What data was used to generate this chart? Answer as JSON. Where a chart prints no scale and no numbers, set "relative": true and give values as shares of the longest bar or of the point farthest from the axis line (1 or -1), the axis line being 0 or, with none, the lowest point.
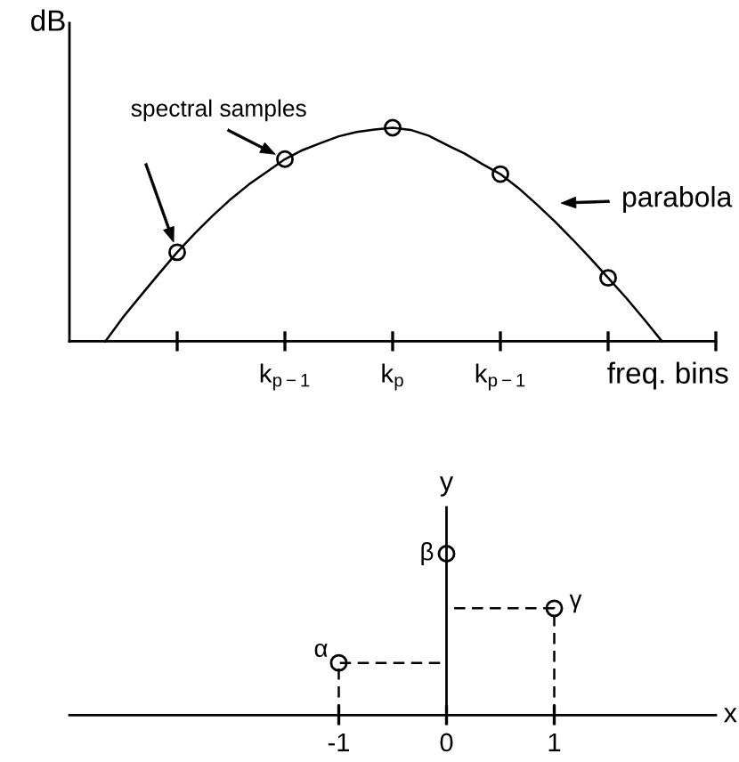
{
  "chart_data": [
    {
      "type": "line",
      "relative": true,
      "ylabel": "dB",
      "xlabel": "freq. bins",
      "categories": [
        null,
        null,
        null,
        null,
        null,
        null,
        null,
        null,
        null,
        null,
        null,
        null,
        "k$_{p−1}$",
        null,
        null,
        null,
        null,
        null,
        "k$_{p}$",
        null,
        null,
        null,
        null,
        null,
        "k$_{p−1}$",
        null,
        null,
        null,
        null,
        null,
        null,
        null,
        null,
        null,
        null,
        null,
        null
      ],
      "series": [
        {
          "color": "#000000",
          "line_style": "solid",
          "marker": "none",
          "values": [
            null,
            null,
            0,
            0.114,
            0.217,
            0.318,
            0.417,
            0.507,
            0.59,
            0.667,
            0.735,
            0.794,
            0.853,
            0.896,
            0.929,
            0.96,
            0.98,
            0.992,
            1,
            0.99,
            0.963,
            0.92,
            0.88,
            0.83,
            0.783,
            0.718,
            0.643,
            0.564,
            0.479,
            0.39,
            0.297,
            0.204,
            0.104,
            0,
            null,
            null,
            null
          ]
        },
        {
          "type": "scatter",
          "color": "#000000",
          "marker": "circle",
          "values": [
            null,
            null,
            null,
            null,
            null,
            null,
            0.417,
            null,
            null,
            null,
            null,
            null,
            0.853,
            null,
            null,
            null,
            null,
            null,
            1,
            null,
            null,
            null,
            null,
            null,
            0.783,
            null,
            null,
            null,
            null,
            null,
            0.297,
            null,
            null,
            null,
            null,
            null,
            null
          ]
        }
      ],
      "annotations": [
        "spectral samples",
        "parabola"
      ]
    },
    {
      "type": "scatter",
      "relative": true,
      "ylabel": "y",
      "xlabel": "x",
      "xlim": [
        -3.5,
        2.5
      ],
      "xticks": [
        -1,
        0,
        1
      ],
      "series": [
        {
          "type": "line",
          "color": "#000000",
          "line_style": "dashed",
          "marker": "none",
          "x": [
            -1,
            -1,
            0
          ],
          "values": [
            0,
            0.324,
            0.324
          ]
        },
        {
          "type": "line",
          "color": "#000000",
          "line_style": "dashed",
          "marker": "none",
          "x": [
            1,
            1,
            0
          ],
          "values": [
            0,
            0.662,
            0.662
          ]
        },
        {
          "color": "#000000",
          "marker": "circle",
          "x": [
            -1,
            0,
            1
          ],
          "values": [
            0.324,
            1,
            0.662
          ]
        }
      ],
      "annotations": [
        {
          "text": "α",
          "x": -1,
          "y": 0.324
        },
        {
          "text": "β",
          "x": 0,
          "y": 1
        },
        {
          "text": "γ",
          "x": 1,
          "y": 0.662
        }
      ]
    }
  ]
}
